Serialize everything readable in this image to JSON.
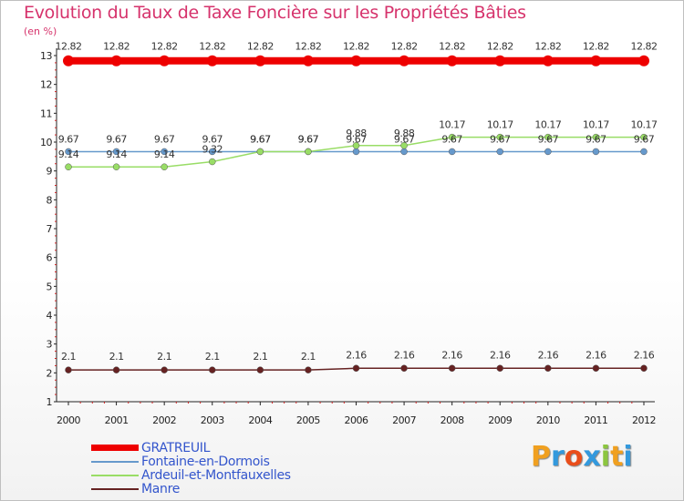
{
  "title": "Evolution du Taux de Taxe Foncière sur les Propriétés Bâties",
  "unit": "(en %)",
  "brand": {
    "letters": [
      "P",
      "r",
      "o",
      "x",
      "i",
      "t",
      "i"
    ],
    "colors": [
      "#f0a020",
      "#3399dd",
      "#e94e1b",
      "#3399dd",
      "#8cc63f",
      "#f0a020",
      "#3399dd"
    ]
  },
  "chart_data": {
    "type": "line",
    "title": "Evolution du Taux de Taxe Foncière sur les Propriétés Bâties",
    "ylabel": "(en %)",
    "x": [
      "2000",
      "2001",
      "2002",
      "2003",
      "2004",
      "2005",
      "2006",
      "2007",
      "2008",
      "2009",
      "2010",
      "2011",
      "2012"
    ],
    "ylim": [
      1,
      13
    ],
    "yticks": [
      1,
      2,
      3,
      4,
      5,
      6,
      7,
      8,
      9,
      10,
      11,
      12,
      13
    ],
    "series": [
      {
        "name": "GRATREUIL",
        "color": "#ee0000",
        "values": [
          12.82,
          12.82,
          12.82,
          12.82,
          12.82,
          12.82,
          12.82,
          12.82,
          12.82,
          12.82,
          12.82,
          12.82,
          12.82
        ],
        "labels": [
          "12.82",
          "12.82",
          "12.82",
          "12.82",
          "12.82",
          "12.82",
          "12.82",
          "12.82",
          "12.82",
          "12.82",
          "12.82",
          "12.82",
          "12.82"
        ]
      },
      {
        "name": "Fontaine-en-Dormois",
        "color": "#6699cc",
        "values": [
          9.67,
          9.67,
          9.67,
          9.67,
          9.67,
          9.67,
          9.67,
          9.67,
          9.67,
          9.67,
          9.67,
          9.67,
          9.67
        ],
        "labels": [
          "9.67",
          "9.67",
          "9.67",
          "9.67",
          "9.67",
          "9.67",
          "9.67",
          "9.67",
          "9.67",
          "9.67",
          "9.67",
          "9.67",
          "9.67"
        ]
      },
      {
        "name": "Ardeuil-et-Montfauxelles",
        "color": "#99dd66",
        "values": [
          9.14,
          9.14,
          9.14,
          9.32,
          9.67,
          9.67,
          9.88,
          9.88,
          10.17,
          10.17,
          10.17,
          10.17,
          10.17
        ],
        "labels": [
          "9.14",
          "9.14",
          "9.14",
          "9.32",
          "9.67",
          "9.67",
          "9.88",
          "9.88",
          "10.17",
          "10.17",
          "10.17",
          "10.17",
          "10.17"
        ]
      },
      {
        "name": "Manre",
        "color": "#662222",
        "values": [
          2.1,
          2.1,
          2.1,
          2.1,
          2.1,
          2.1,
          2.16,
          2.16,
          2.16,
          2.16,
          2.16,
          2.16,
          2.16
        ],
        "labels": [
          "2.1",
          "2.1",
          "2.1",
          "2.1",
          "2.1",
          "2.1",
          "2.16",
          "2.16",
          "2.16",
          "2.16",
          "2.16",
          "2.16",
          "2.16"
        ]
      }
    ]
  }
}
